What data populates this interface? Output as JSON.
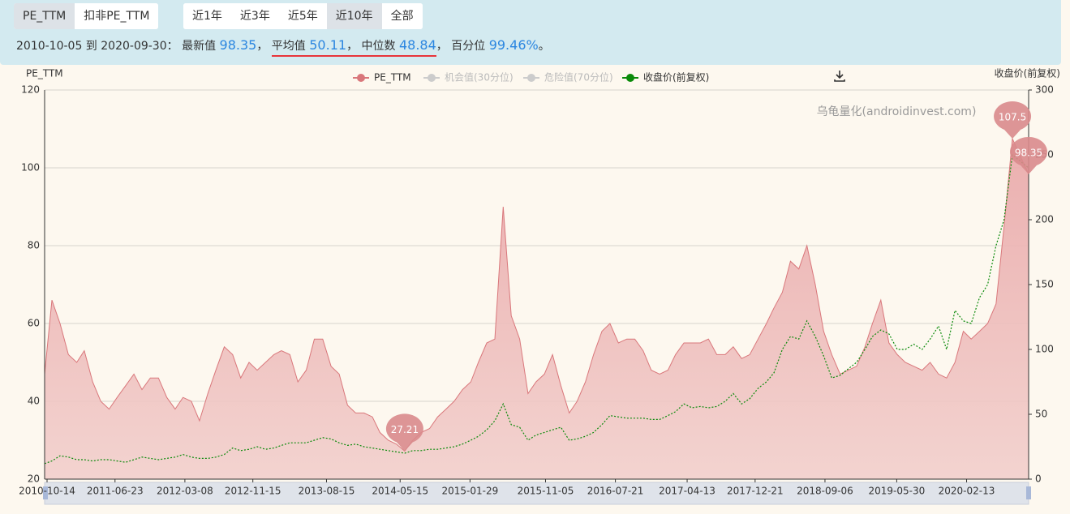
{
  "toolbar": {
    "metric_buttons": [
      "PE_TTM",
      "扣非PE_TTM"
    ],
    "range_buttons": [
      "近1年",
      "近3年",
      "近5年",
      "近10年",
      "全部"
    ]
  },
  "summary": {
    "range": "2010-10-05 到 2020-09-30：",
    "items": [
      {
        "label": "最新值",
        "value": 98.35,
        "suffix": "，"
      },
      {
        "label": "平均值",
        "value": 50.11,
        "suffix": "，"
      },
      {
        "label": "中位数",
        "value": 48.84,
        "suffix": "，"
      },
      {
        "label": "百分位",
        "value": "99.46%",
        "suffix": "。"
      }
    ]
  },
  "chart_data": {
    "type": "line",
    "y_label": "PE_TTM",
    "y2_label": "收盘价(前复权)",
    "watermark": "乌龟量化(androidinvest.com)",
    "x": [
      "2010-10-05",
      "2010-11-01",
      "2010-12-01",
      "2011-01-01",
      "2011-02-01",
      "2011-03-01",
      "2011-04-01",
      "2011-05-01",
      "2011-06-01",
      "2011-07-01",
      "2011-08-01",
      "2011-09-01",
      "2011-10-01",
      "2011-11-01",
      "2011-12-01",
      "2012-01-01",
      "2012-02-01",
      "2012-03-01",
      "2012-04-01",
      "2012-05-01",
      "2012-06-01",
      "2012-07-01",
      "2012-08-01",
      "2012-09-01",
      "2012-10-01",
      "2012-11-01",
      "2012-12-01",
      "2013-01-01",
      "2013-02-01",
      "2013-03-01",
      "2013-04-01",
      "2013-05-01",
      "2013-06-01",
      "2013-07-01",
      "2013-08-01",
      "2013-09-01",
      "2013-10-01",
      "2013-11-01",
      "2013-12-01",
      "2014-01-01",
      "2014-02-01",
      "2014-03-01",
      "2014-04-01",
      "2014-05-01",
      "2014-06-01",
      "2014-07-01",
      "2014-08-01",
      "2014-09-01",
      "2014-10-01",
      "2014-11-01",
      "2014-12-01",
      "2015-01-01",
      "2015-02-01",
      "2015-03-01",
      "2015-04-01",
      "2015-05-01",
      "2015-06-01",
      "2015-07-01",
      "2015-08-01",
      "2015-09-01",
      "2015-10-01",
      "2015-11-01",
      "2015-12-01",
      "2016-01-01",
      "2016-02-01",
      "2016-03-01",
      "2016-04-01",
      "2016-05-01",
      "2016-06-01",
      "2016-07-01",
      "2016-08-01",
      "2016-09-01",
      "2016-10-01",
      "2016-11-01",
      "2016-12-01",
      "2017-01-01",
      "2017-02-01",
      "2017-03-01",
      "2017-04-01",
      "2017-05-01",
      "2017-06-01",
      "2017-07-01",
      "2017-08-01",
      "2017-09-01",
      "2017-10-01",
      "2017-11-01",
      "2017-12-01",
      "2018-01-01",
      "2018-02-01",
      "2018-03-01",
      "2018-04-01",
      "2018-05-01",
      "2018-06-01",
      "2018-07-01",
      "2018-08-01",
      "2018-09-01",
      "2018-10-01",
      "2018-11-01",
      "2018-12-01",
      "2019-01-01",
      "2019-02-01",
      "2019-03-01",
      "2019-04-01",
      "2019-05-01",
      "2019-06-01",
      "2019-07-01",
      "2019-08-01",
      "2019-09-01",
      "2019-10-01",
      "2019-11-01",
      "2019-12-01",
      "2020-01-01",
      "2020-02-01",
      "2020-03-01",
      "2020-04-01",
      "2020-05-01",
      "2020-06-01",
      "2020-07-01",
      "2020-08-01",
      "2020-09-30"
    ],
    "series": [
      {
        "name": "PE_TTM",
        "color": "#d9777b",
        "values": [
          47,
          66,
          60,
          52,
          50,
          53,
          45,
          40,
          38,
          41,
          44,
          47,
          43,
          46,
          46,
          41,
          38,
          41,
          40,
          35,
          42,
          48,
          54,
          52,
          46,
          50,
          48,
          50,
          52,
          53,
          52,
          45,
          48,
          56,
          56,
          49,
          47,
          39,
          37,
          37,
          36,
          32,
          30,
          29,
          27.21,
          30,
          32,
          33,
          36,
          38,
          40,
          43,
          45,
          50,
          55,
          56,
          90,
          62,
          56,
          42,
          45,
          47,
          52,
          44,
          37,
          40,
          45,
          52,
          58,
          60,
          55,
          56,
          56,
          53,
          48,
          47,
          48,
          52,
          55,
          55,
          55,
          56,
          52,
          52,
          54,
          51,
          52,
          56,
          60,
          64,
          68,
          76,
          74,
          80,
          70,
          58,
          52,
          47,
          48,
          49,
          54,
          60,
          66,
          55,
          52,
          50,
          49,
          48,
          50,
          47,
          46,
          50,
          58,
          56,
          58,
          60,
          65,
          85,
          107.5,
          98.35
        ]
      },
      {
        "name": "收盘价(前复权)",
        "color": "#0a8a0a",
        "axis": "y2",
        "values": [
          12,
          14,
          18,
          17,
          15,
          15,
          14,
          15,
          15,
          14,
          13,
          15,
          17,
          16,
          15,
          16,
          17,
          19,
          17,
          16,
          16,
          17,
          19,
          24,
          22,
          23,
          25,
          23,
          24,
          26,
          28,
          28,
          28,
          30,
          32,
          31,
          28,
          26,
          27,
          25,
          24,
          23,
          22,
          21,
          20,
          22,
          22,
          23,
          23,
          24,
          25,
          27,
          30,
          33,
          38,
          45,
          58,
          42,
          40,
          30,
          34,
          36,
          38,
          40,
          30,
          31,
          33,
          36,
          42,
          49,
          48,
          47,
          47,
          47,
          46,
          46,
          49,
          52,
          58,
          55,
          56,
          55,
          56,
          60,
          66,
          58,
          62,
          70,
          75,
          82,
          100,
          110,
          108,
          122,
          110,
          95,
          78,
          80,
          85,
          90,
          100,
          110,
          115,
          112,
          100,
          100,
          104,
          100,
          108,
          118,
          100,
          130,
          122,
          120,
          140,
          150,
          180,
          200,
          250,
          240
        ]
      }
    ],
    "hidden_series": [
      {
        "name": "机会值(30分位)",
        "color": "#cccccc"
      },
      {
        "name": "危险值(70分位)",
        "color": "#cccccc"
      }
    ],
    "xlim": [
      "2010-10-05",
      "2020-09-30"
    ],
    "xticks": [
      "2010-10-14",
      "2011-06-23",
      "2012-03-08",
      "2012-11-15",
      "2013-08-15",
      "2014-05-15",
      "2015-01-29",
      "2015-11-05",
      "2016-07-21",
      "2017-04-13",
      "2017-12-21",
      "2018-09-06",
      "2019-05-30",
      "2020-02-13"
    ],
    "ylim": [
      20,
      120
    ],
    "yticks": [
      20,
      40,
      60,
      80,
      100,
      120
    ],
    "y2lim": [
      0,
      300
    ],
    "y2ticks": [
      0,
      50,
      100,
      150,
      200,
      250,
      300
    ],
    "grid": true
  }
}
